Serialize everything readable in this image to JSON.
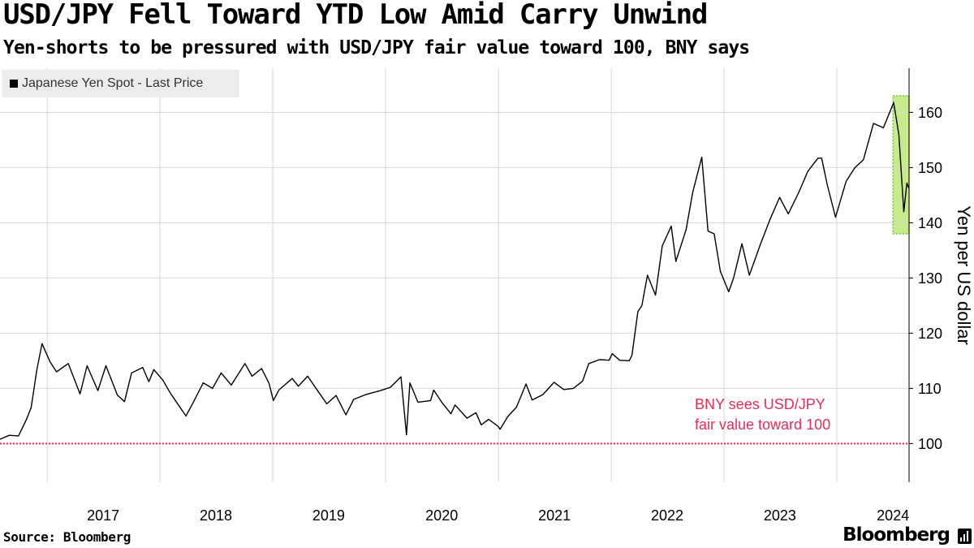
{
  "header": {
    "title": "USD/JPY Fell Toward YTD Low Amid Carry Unwind",
    "subtitle": "Yen-shorts to be pressured with USD/JPY fair value toward 100, BNY says"
  },
  "footer": {
    "source": "Source: Bloomberg",
    "brand": "Bloomberg"
  },
  "colors": {
    "line": "#000000",
    "highlight_fill": "#c7ea8c",
    "highlight_border": "#6cc22a",
    "reference_line": "#e0305a",
    "grid": "#d7d7d7",
    "legend_bg": "#ececec"
  },
  "chart_data": {
    "type": "line",
    "title": "USD/JPY Fell Toward YTD Low Amid Carry Unwind",
    "subtitle": "Yen-shorts to be pressured with USD/JPY fair value toward 100, BNY says",
    "ylabel": "Yen per US dollar",
    "xlabel": "",
    "ylim": [
      93,
      168
    ],
    "xlim": [
      "2016-08-01",
      "2024-08-22"
    ],
    "y_ticks": [
      100,
      110,
      120,
      130,
      140,
      150,
      160
    ],
    "x_ticks": [
      {
        "label": "2017",
        "date": "2017-07-01"
      },
      {
        "label": "2018",
        "date": "2018-07-01"
      },
      {
        "label": "2019",
        "date": "2019-07-01"
      },
      {
        "label": "2020",
        "date": "2020-07-01"
      },
      {
        "label": "2021",
        "date": "2021-07-01"
      },
      {
        "label": "2022",
        "date": "2022-07-01"
      },
      {
        "label": "2023",
        "date": "2023-07-01"
      },
      {
        "label": "2024",
        "date": "2024-07-01"
      }
    ],
    "grid": true,
    "legend": "top-left",
    "series": [
      {
        "name": "Japanese Yen Spot - Last Price",
        "x": [
          "2016-08-01",
          "2016-08-31",
          "2016-09-30",
          "2016-10-25",
          "2016-11-10",
          "2016-11-28",
          "2016-12-15",
          "2017-01-10",
          "2017-01-31",
          "2017-03-10",
          "2017-04-17",
          "2017-05-10",
          "2017-06-14",
          "2017-07-10",
          "2017-08-16",
          "2017-09-08",
          "2017-10-01",
          "2017-11-06",
          "2017-11-26",
          "2017-12-12",
          "2018-01-10",
          "2018-02-05",
          "2018-03-26",
          "2018-04-20",
          "2018-05-21",
          "2018-06-20",
          "2018-07-18",
          "2018-08-20",
          "2018-10-03",
          "2018-10-26",
          "2018-11-26",
          "2018-12-20",
          "2019-01-03",
          "2019-01-21",
          "2019-03-05",
          "2019-03-25",
          "2019-04-24",
          "2019-05-20",
          "2019-06-25",
          "2019-07-25",
          "2019-08-26",
          "2019-09-20",
          "2019-10-30",
          "2019-12-16",
          "2020-01-17",
          "2020-02-20",
          "2020-03-09",
          "2020-03-20",
          "2020-04-15",
          "2020-05-26",
          "2020-06-05",
          "2020-07-01",
          "2020-07-31",
          "2020-08-13",
          "2020-09-21",
          "2020-10-20",
          "2020-11-06",
          "2020-11-30",
          "2020-12-31",
          "2021-01-06",
          "2021-01-31",
          "2021-02-28",
          "2021-03-31",
          "2021-04-20",
          "2021-05-25",
          "2021-06-30",
          "2021-07-31",
          "2021-08-31",
          "2021-09-30",
          "2021-10-20",
          "2021-11-24",
          "2021-12-25",
          "2022-01-04",
          "2022-01-28",
          "2022-02-28",
          "2022-03-09",
          "2022-03-28",
          "2022-04-10",
          "2022-04-28",
          "2022-05-24",
          "2022-06-15",
          "2022-07-14",
          "2022-07-29",
          "2022-08-31",
          "2022-09-22",
          "2022-10-21",
          "2022-11-10",
          "2022-11-30",
          "2022-12-20",
          "2023-01-16",
          "2023-02-01",
          "2023-02-28",
          "2023-03-24",
          "2023-04-28",
          "2023-05-30",
          "2023-06-30",
          "2023-07-28",
          "2023-08-31",
          "2023-09-29",
          "2023-11-01",
          "2023-11-13",
          "2023-12-01",
          "2023-12-28",
          "2024-01-31",
          "2024-02-29",
          "2024-03-27",
          "2024-04-29",
          "2024-05-31",
          "2024-06-26",
          "2024-07-03",
          "2024-07-20",
          "2024-08-05",
          "2024-08-15",
          "2024-08-22"
        ],
        "values": [
          100.8,
          101.5,
          101.4,
          104.3,
          106.5,
          113.3,
          118.1,
          114.8,
          113.0,
          114.5,
          109.0,
          114.1,
          109.6,
          114.1,
          108.8,
          107.6,
          112.8,
          113.8,
          111.2,
          113.4,
          111.5,
          109.0,
          105.0,
          107.6,
          111.0,
          110.0,
          112.8,
          110.6,
          114.5,
          112.2,
          113.6,
          110.9,
          107.8,
          109.7,
          111.8,
          110.4,
          112.2,
          110.1,
          107.2,
          108.7,
          105.2,
          108.0,
          108.9,
          109.6,
          110.2,
          112.1,
          101.6,
          111.0,
          107.5,
          107.8,
          109.7,
          107.5,
          105.4,
          107.0,
          104.6,
          105.6,
          103.4,
          104.4,
          103.1,
          102.6,
          104.9,
          106.6,
          110.8,
          107.9,
          108.9,
          111.1,
          109.8,
          110.0,
          111.3,
          114.5,
          115.2,
          115.1,
          116.3,
          115.1,
          115.0,
          116.0,
          123.9,
          125.0,
          130.5,
          126.9,
          135.8,
          139.4,
          133.0,
          138.7,
          145.6,
          151.9,
          138.5,
          138.0,
          131.2,
          127.5,
          130.0,
          136.2,
          130.5,
          136.0,
          140.6,
          144.6,
          141.6,
          145.5,
          149.3,
          151.7,
          151.7,
          146.9,
          141.0,
          147.5,
          150.0,
          151.4,
          158.0,
          157.2,
          160.8,
          161.8,
          156.0,
          142.0,
          147.2,
          146.2
        ]
      }
    ],
    "highlight": {
      "x_range": [
        "2024-07-01",
        "2024-08-22"
      ],
      "y_range": [
        138,
        163
      ]
    },
    "reference_line": {
      "y": 100,
      "style": "dotted"
    },
    "annotations": [
      {
        "lines": [
          "BNY sees USD/JPY",
          "fair value toward 100"
        ],
        "color": "#e0305a"
      }
    ]
  }
}
